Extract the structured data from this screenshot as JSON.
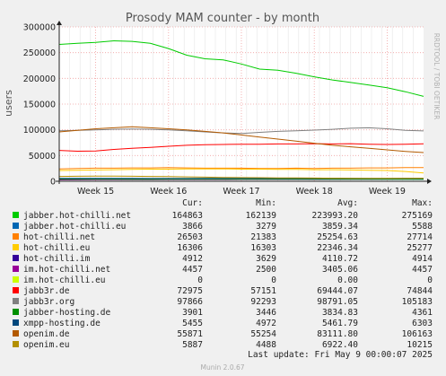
{
  "chart_data": {
    "type": "line",
    "title": "Prosody MAM counter - by month",
    "ylabel": "users",
    "watermark": "RRDTOOL / TOBI OETIKER",
    "footer": "Munin 2.0.67",
    "ylim": [
      0,
      300000
    ],
    "yticks": [
      "0",
      "50000",
      "100000",
      "150000",
      "200000",
      "250000",
      "300000"
    ],
    "xticks": [
      "Week 15",
      "Week 16",
      "Week 17",
      "Week 18",
      "Week 19"
    ],
    "grid": true,
    "legend_headers": {
      "cur": "Cur:",
      "min": "Min:",
      "avg": "Avg:",
      "max": "Max:"
    },
    "last_update": "Last update: Fri May  9 00:00:07 2025",
    "x": [
      0,
      0.05,
      0.1,
      0.15,
      0.2,
      0.25,
      0.3,
      0.35,
      0.4,
      0.45,
      0.5,
      0.55,
      0.6,
      0.65,
      0.7,
      0.75,
      0.8,
      0.85,
      0.9,
      0.95,
      1.0
    ],
    "series": [
      {
        "name": "jabber.hot-chilli.net",
        "color": "#00cc00",
        "cur": "164863",
        "min": "162139",
        "avg": "223993.20",
        "max": "275169",
        "values": [
          266000,
          268000,
          270000,
          273000,
          272000,
          268000,
          258000,
          245000,
          238000,
          236000,
          228000,
          218000,
          216000,
          210000,
          203000,
          197000,
          192000,
          187000,
          182000,
          174000,
          165000
        ]
      },
      {
        "name": "jabber.hot-chilli.eu",
        "color": "#0066b3",
        "cur": "3866",
        "min": "3279",
        "avg": "3859.34",
        "max": "5588",
        "values": [
          4000,
          4100,
          4000,
          3900,
          3900,
          3800,
          3700,
          3600,
          3700,
          3800,
          3900,
          3900,
          3800,
          3800,
          3900,
          3900,
          3800,
          3900,
          3900,
          3900,
          3866
        ]
      },
      {
        "name": "hot-chilli.net",
        "color": "#ff8000",
        "cur": "26503",
        "min": "21383",
        "avg": "25254.63",
        "max": "27714",
        "values": [
          24000,
          25000,
          25500,
          25500,
          26000,
          26000,
          26500,
          26000,
          25500,
          25500,
          25500,
          25000,
          25000,
          25500,
          25000,
          25500,
          25500,
          26000,
          26000,
          26500,
          26503
        ]
      },
      {
        "name": "hot-chilli.eu",
        "color": "#ffcc00",
        "cur": "16306",
        "min": "16303",
        "avg": "22346.34",
        "max": "25277",
        "values": [
          21000,
          21500,
          22000,
          22500,
          23000,
          23500,
          23500,
          24000,
          24000,
          24000,
          23500,
          23500,
          23000,
          23000,
          22500,
          22500,
          22000,
          21500,
          21000,
          19000,
          16306
        ]
      },
      {
        "name": "hot-chilli.im",
        "color": "#330099",
        "cur": "4912",
        "min": "3629",
        "avg": "4110.72",
        "max": "4914",
        "values": [
          3700,
          3800,
          3900,
          4000,
          4000,
          4000,
          4100,
          4100,
          4100,
          4200,
          4200,
          4100,
          4100,
          4200,
          4200,
          4300,
          4400,
          4500,
          4600,
          4800,
          4912
        ]
      },
      {
        "name": "im.hot-chilli.net",
        "color": "#990099",
        "cur": "4457",
        "min": "2500",
        "avg": "3405.06",
        "max": "4457",
        "values": [
          2600,
          2800,
          2900,
          3000,
          3100,
          3200,
          3300,
          3300,
          3400,
          3400,
          3500,
          3500,
          3500,
          3600,
          3700,
          3800,
          3900,
          4000,
          4100,
          4300,
          4457
        ]
      },
      {
        "name": "im.hot-chilli.eu",
        "color": "#ccff00",
        "cur": "0",
        "min": "0",
        "avg": "0.00",
        "max": "0",
        "values": [
          0,
          0,
          0,
          0,
          0,
          0,
          0,
          0,
          0,
          0,
          0,
          0,
          0,
          0,
          0,
          0,
          0,
          0,
          0,
          0,
          0
        ]
      },
      {
        "name": "jabb3r.de",
        "color": "#ff0000",
        "cur": "72975",
        "min": "57151",
        "avg": "69444.07",
        "max": "74844",
        "values": [
          60000,
          58500,
          59000,
          62000,
          64000,
          66000,
          68000,
          70000,
          71000,
          71500,
          72000,
          72000,
          72500,
          72500,
          73000,
          72500,
          73000,
          72000,
          71500,
          72000,
          72975
        ]
      },
      {
        "name": "jabb3r.org",
        "color": "#808080",
        "cur": "97866",
        "min": "92293",
        "avg": "98791.05",
        "max": "105183",
        "values": [
          98000,
          99000,
          100000,
          101000,
          101500,
          101000,
          100000,
          98000,
          96000,
          94000,
          93000,
          95000,
          97000,
          98000,
          99500,
          101000,
          103000,
          104000,
          102000,
          99000,
          97866
        ]
      },
      {
        "name": "jabber-hosting.de",
        "color": "#008f00",
        "cur": "3901",
        "min": "3446",
        "avg": "3834.83",
        "max": "4361",
        "values": [
          3900,
          3900,
          3800,
          3800,
          3700,
          3700,
          3800,
          3800,
          3900,
          3900,
          3900,
          3800,
          3800,
          3800,
          3900,
          3900,
          3900,
          3800,
          3800,
          3900,
          3901
        ]
      },
      {
        "name": "xmpp-hosting.de",
        "color": "#00487d",
        "cur": "5455",
        "min": "4972",
        "avg": "5461.79",
        "max": "6303",
        "values": [
          5500,
          5600,
          5600,
          5500,
          5500,
          5400,
          5400,
          5400,
          5500,
          5500,
          5500,
          5400,
          5400,
          5400,
          5500,
          5500,
          5500,
          5400,
          5400,
          5500,
          5455
        ]
      },
      {
        "name": "openim.de",
        "color": "#b35a00",
        "cur": "55871",
        "min": "55254",
        "avg": "83111.80",
        "max": "106163",
        "values": [
          96000,
          99000,
          102000,
          104000,
          106000,
          104000,
          102000,
          100000,
          97000,
          94000,
          90000,
          86000,
          82000,
          78000,
          74000,
          70000,
          67000,
          64000,
          61000,
          58000,
          55871
        ]
      },
      {
        "name": "openim.eu",
        "color": "#b38f00",
        "cur": "5887",
        "min": "4488",
        "avg": "6922.40",
        "max": "10215",
        "values": [
          9500,
          9800,
          10000,
          10100,
          9800,
          9500,
          9000,
          8500,
          8000,
          7500,
          7200,
          6900,
          6600,
          6400,
          6200,
          6000,
          5800,
          5700,
          5700,
          5800,
          5887
        ]
      }
    ]
  }
}
